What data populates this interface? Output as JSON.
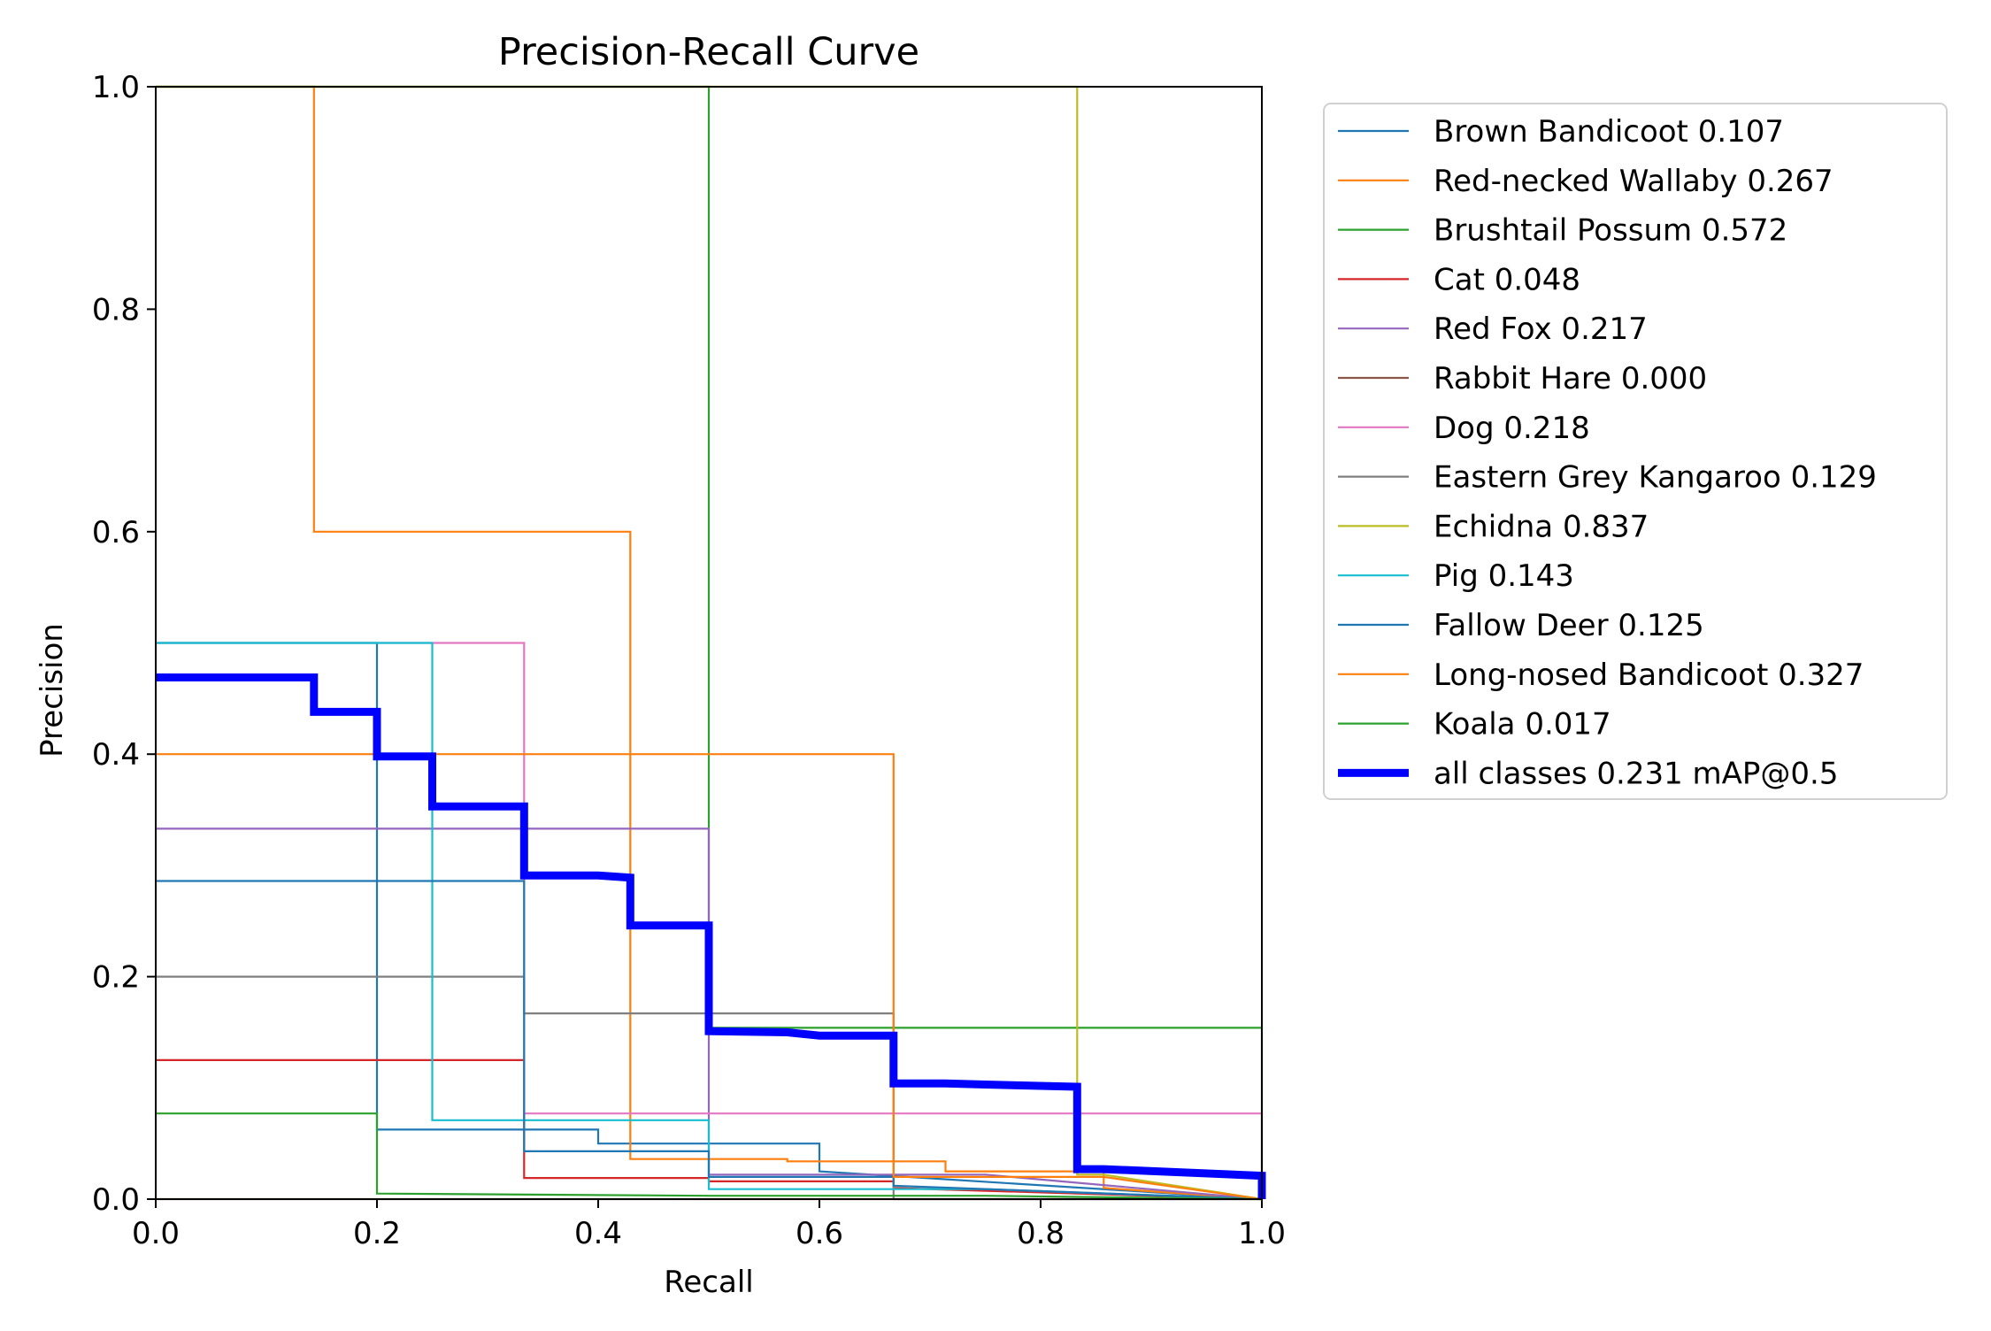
{
  "chart_data": {
    "type": "line",
    "title": "Precision-Recall Curve",
    "xlabel": "Recall",
    "ylabel": "Precision",
    "xlim": [
      0,
      1
    ],
    "ylim": [
      0,
      1
    ],
    "xticks": [
      "0.0",
      "0.2",
      "0.4",
      "0.6",
      "0.8",
      "1.0"
    ],
    "yticks": [
      "0.0",
      "0.2",
      "0.4",
      "0.6",
      "0.8",
      "1.0"
    ],
    "grid": false,
    "legend_position": "outside-right",
    "series": [
      {
        "name": "Brown Bandicoot 0.107",
        "color": "#1f77b4",
        "points": [
          [
            0,
            0.5
          ],
          [
            0.2,
            0.5
          ],
          [
            0.2,
            0.0625
          ],
          [
            0.4,
            0.0625
          ],
          [
            0.4,
            0.05
          ],
          [
            0.6,
            0.05
          ],
          [
            0.6,
            0.025
          ],
          [
            1.0,
            0.0
          ]
        ]
      },
      {
        "name": "Red-necked Wallaby 0.267",
        "color": "#ff7f0e",
        "points": [
          [
            0,
            1.0
          ],
          [
            0.143,
            1.0
          ],
          [
            0.143,
            0.6
          ],
          [
            0.429,
            0.6
          ],
          [
            0.429,
            0.036
          ],
          [
            0.571,
            0.036
          ],
          [
            0.571,
            0.034
          ],
          [
            0.714,
            0.034
          ],
          [
            0.714,
            0.025
          ],
          [
            0.857,
            0.025
          ],
          [
            0.857,
            0.01
          ],
          [
            1.0,
            0.0
          ]
        ]
      },
      {
        "name": "Brushtail Possum 0.572",
        "color": "#2ca02c",
        "points": [
          [
            0,
            1.0
          ],
          [
            0.5,
            1.0
          ],
          [
            0.5,
            0.154
          ],
          [
            1.0,
            0.154
          ],
          [
            1.0,
            0.0
          ]
        ]
      },
      {
        "name": "Cat 0.048",
        "color": "#d62728",
        "points": [
          [
            0,
            0.125
          ],
          [
            0.333,
            0.125
          ],
          [
            0.333,
            0.019
          ],
          [
            0.5,
            0.019
          ],
          [
            0.5,
            0.016
          ],
          [
            0.667,
            0.016
          ],
          [
            0.667,
            0.01
          ],
          [
            1.0,
            0.0
          ]
        ]
      },
      {
        "name": "Red Fox 0.217",
        "color": "#9467bd",
        "points": [
          [
            0,
            0.333
          ],
          [
            0.5,
            0.333
          ],
          [
            0.5,
            0.022
          ],
          [
            0.75,
            0.022
          ],
          [
            1.0,
            0.0
          ]
        ]
      },
      {
        "name": "Rabbit Hare 0.000",
        "color": "#8c564b",
        "points": [
          [
            0,
            0.0
          ],
          [
            1.0,
            0.0
          ]
        ]
      },
      {
        "name": "Dog 0.218",
        "color": "#e377c2",
        "points": [
          [
            0,
            0.5
          ],
          [
            0.333,
            0.5
          ],
          [
            0.333,
            0.077
          ],
          [
            1.0,
            0.077
          ],
          [
            1.0,
            0.0
          ]
        ]
      },
      {
        "name": "Eastern Grey Kangaroo 0.129",
        "color": "#7f7f7f",
        "points": [
          [
            0,
            0.2
          ],
          [
            0.333,
            0.2
          ],
          [
            0.333,
            0.167
          ],
          [
            0.667,
            0.167
          ],
          [
            0.667,
            0.0
          ],
          [
            1.0,
            0.0
          ]
        ]
      },
      {
        "name": "Echidna 0.837",
        "color": "#bcbd22",
        "points": [
          [
            0,
            1.0
          ],
          [
            0.833,
            1.0
          ],
          [
            0.833,
            0.022
          ],
          [
            0.857,
            0.022
          ],
          [
            1.0,
            0.0
          ]
        ]
      },
      {
        "name": "Pig 0.143",
        "color": "#17becf",
        "points": [
          [
            0,
            0.5
          ],
          [
            0.25,
            0.5
          ],
          [
            0.25,
            0.071
          ],
          [
            0.5,
            0.071
          ],
          [
            0.5,
            0.009
          ],
          [
            0.75,
            0.009
          ],
          [
            1.0,
            0.0
          ]
        ]
      },
      {
        "name": "Fallow Deer 0.125",
        "color": "#1f77b4",
        "points": [
          [
            0,
            0.286
          ],
          [
            0.333,
            0.286
          ],
          [
            0.333,
            0.043
          ],
          [
            0.5,
            0.043
          ],
          [
            0.5,
            0.02
          ],
          [
            0.667,
            0.02
          ],
          [
            0.667,
            0.012
          ],
          [
            1.0,
            0.0
          ]
        ]
      },
      {
        "name": "Long-nosed Bandicoot 0.327",
        "color": "#ff7f0e",
        "points": [
          [
            0,
            0.4
          ],
          [
            0.667,
            0.4
          ],
          [
            0.667,
            0.02
          ],
          [
            0.857,
            0.02
          ],
          [
            1.0,
            0.0
          ]
        ]
      },
      {
        "name": "Koala 0.017",
        "color": "#2ca02c",
        "points": [
          [
            0,
            0.077
          ],
          [
            0.2,
            0.077
          ],
          [
            0.2,
            0.005
          ],
          [
            0.5,
            0.003
          ],
          [
            0.75,
            0.003
          ],
          [
            1.0,
            0.0
          ]
        ]
      },
      {
        "name": "all classes 0.231 mAP@0.5",
        "color": "#0000ff",
        "bold": true,
        "points": [
          [
            0,
            0.469
          ],
          [
            0.143,
            0.469
          ],
          [
            0.143,
            0.438
          ],
          [
            0.2,
            0.438
          ],
          [
            0.2,
            0.398
          ],
          [
            0.25,
            0.398
          ],
          [
            0.25,
            0.353
          ],
          [
            0.333,
            0.353
          ],
          [
            0.333,
            0.291
          ],
          [
            0.4,
            0.291
          ],
          [
            0.429,
            0.289
          ],
          [
            0.429,
            0.246
          ],
          [
            0.5,
            0.246
          ],
          [
            0.5,
            0.151
          ],
          [
            0.571,
            0.15
          ],
          [
            0.6,
            0.147
          ],
          [
            0.667,
            0.147
          ],
          [
            0.667,
            0.104
          ],
          [
            0.714,
            0.104
          ],
          [
            0.75,
            0.103
          ],
          [
            0.833,
            0.101
          ],
          [
            0.833,
            0.027
          ],
          [
            0.857,
            0.027
          ],
          [
            1.0,
            0.021
          ],
          [
            1.0,
            0.0
          ]
        ]
      }
    ]
  }
}
